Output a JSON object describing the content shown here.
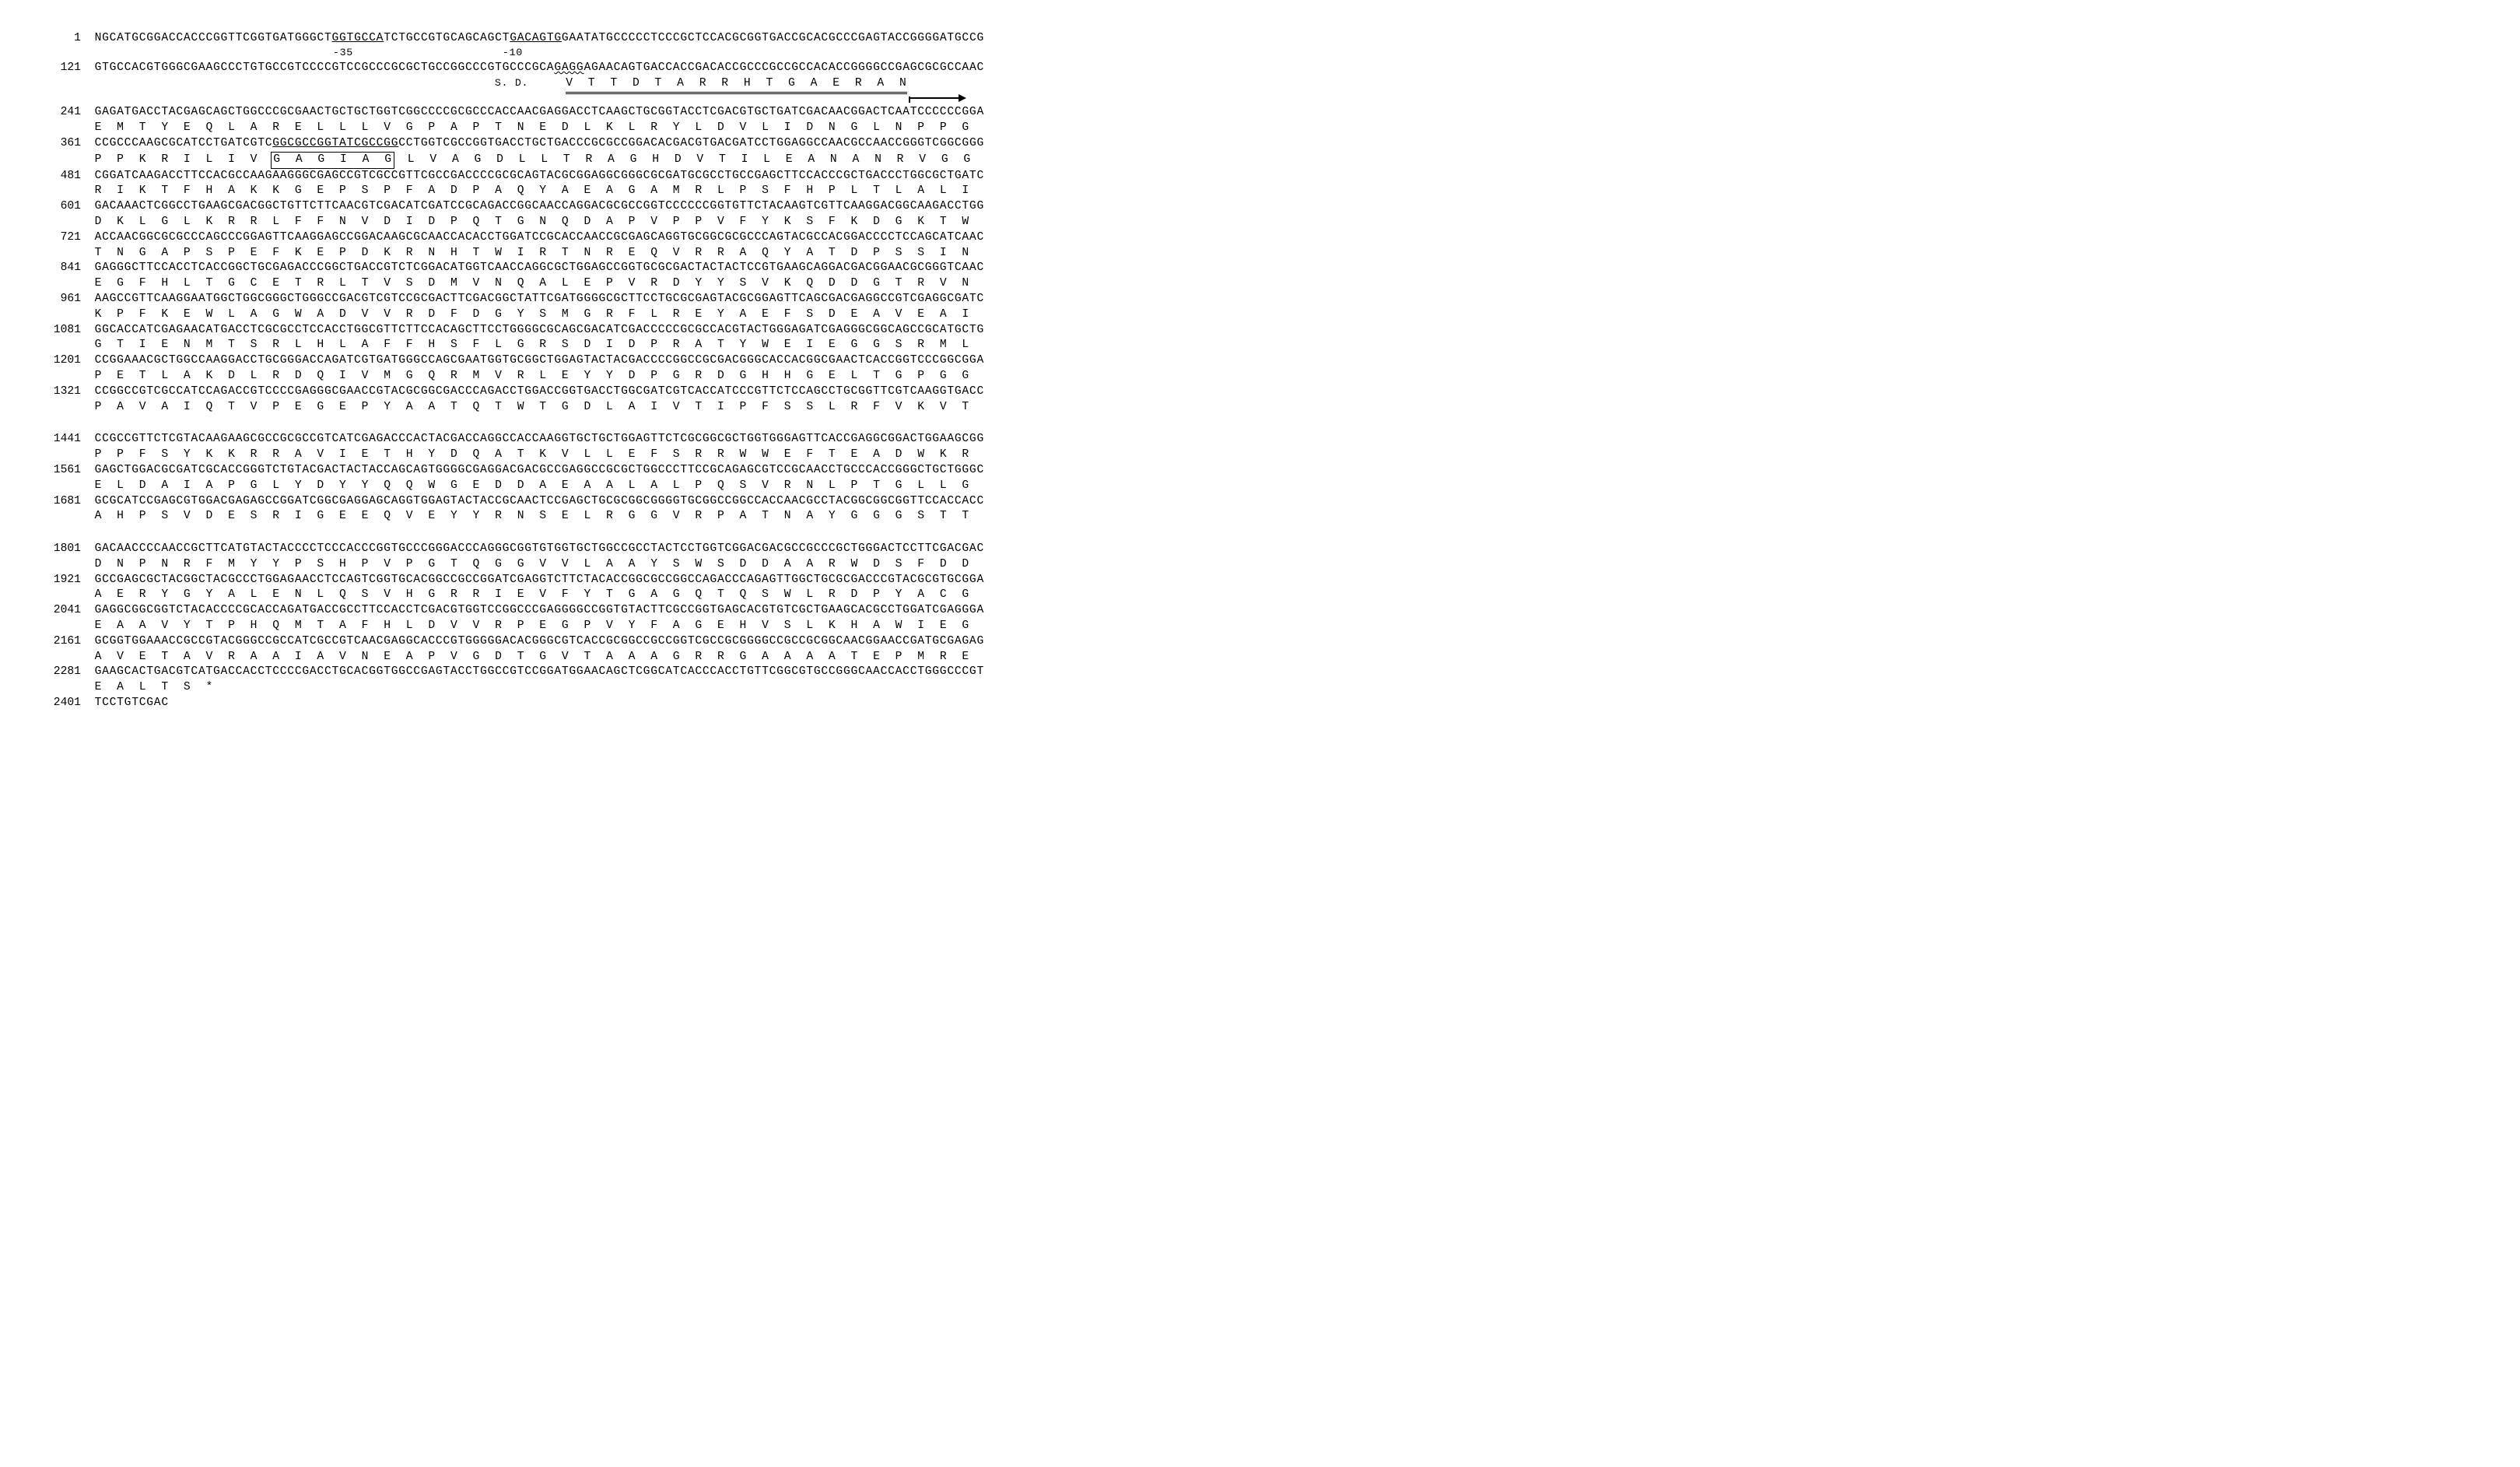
{
  "figure": {
    "type": "sequence-listing",
    "font_family": "Courier New",
    "dna_font_size_pt": 11,
    "aa_font_size_pt": 11,
    "pos_font_size_pt": 11,
    "annot_font_size_pt": 10,
    "text_color": "#000000",
    "background_color": "#ffffff",
    "pos_col_width_ch": 5,
    "gap_after_pos_ch": 2,
    "aa_indent_ch": 7,
    "aa_char_spacing_ch": 3,
    "chars_per_dna_line": 120,
    "annotations": {
      "minus35": {
        "label": "-35",
        "style": "underline",
        "dna_segment": "GGTGCCA"
      },
      "minus10": {
        "label": "-10",
        "style": "underline",
        "dna_segment": "GACAGTG"
      },
      "sd": {
        "label": "S. D.",
        "style": "wavy",
        "dna_segment": "GAGG"
      },
      "orf_start_underline": {
        "style": "double-underline",
        "aa_segment": "V  T  T  D  T  A  R  R  H  T  G  A  E  R  A  N"
      },
      "arrow_label": "ORF start arrow",
      "box_motif": {
        "style": "box",
        "aa_segment": "G  A  G  I  A  G"
      },
      "adp_underline": {
        "style": "underline",
        "dna_segment": "GGCGCCGGTATCGCCGG"
      }
    },
    "lines": [
      {
        "pos": 1,
        "dna_pre": "NGCATGCGGACCACCCGGTTCGGTGATGGGCT",
        "u1": "GGTGCCA",
        "dna_mid": "TCTGCCGTGCAGCAGCT",
        "u2": "GACAGTG",
        "dna_post": "GAATATGCCCCCTCCCGCTCCACGCGGTGACCGCACGCCCGAGTACCGGGGATGCCG"
      },
      {
        "annot_row": true,
        "m35_offset_ch": 46,
        "m10_offset_ch": 73,
        "m35": "-35",
        "m10": "-10"
      },
      {
        "pos": 121,
        "dna_pre": "GTGCCACGTGGGCGAAGCCCTGTGCCGTCCCCGTCCGCCCGCGCTGCCGGCCCGTGCCCGCA",
        "wavy": "GAGG",
        "dna_mid2": "AGAACAGTGACCACCGACACCGCCCGCCGCCACACCGGGGCCGAGCGCGCCAAC"
      },
      {
        "annot_row2": true,
        "sd_offset_ch": 72,
        "sd": "S. D.",
        "aa_dbl_offset_ch": 83,
        "aa_dbl": "V  T  T  D  T  A  R  R  H  T  G  A  E  R  A  N"
      },
      {
        "arrow_row": true,
        "arrow_left_ch": 126,
        "arrow_width_ch": 7
      },
      {
        "pos": 241,
        "dna": "GAGATGACCTACGAGCAGCTGGCCCGCGAACTGCTGCTGGTCGGCCCCGCGCCCACCAACGAGGACCTCAAGCTGCGGTACCTCGACGTGCTGATCGACAACGGACTCAATCCCCCCGGA"
      },
      {
        "aa": "E  M  T  Y  E  Q  L  A  R  E  L  L  L  V  G  P  A  P  T  N  E  D  L  K  L  R  Y  L  D  V  L  I  D  N  G  L  N  P  P  G"
      },
      {
        "pos": 361,
        "dna_pre": "CCGCCCAAGCGCATCCTGATCGTC",
        "u1": "GGCGCCGGTATCGCCGG",
        "dna_post": "CCTGGTCGCCGGTGACCTGCTGACCCGCGCCGGACACGACGTGACGATCCTGGAGGCCAACGCCAACCGGGTCGGCGGG"
      },
      {
        "aa_pre": "P  P  K  R  I  L  I  V  ",
        "aa_box": "G  A  G  I  A  G",
        "aa_post": "  L  V  A  G  D  L  L  T  R  A  G  H  D  V  T  I  L  E  A  N  A  N  R  V  G  G"
      },
      {
        "pos": 481,
        "dna": "CGGATCAAGACCTTCCACGCCAAGAAGGGCGAGCCGTCGCCGTTCGCCGACCCCGCGCAGTACGCGGAGGCGGGCGCGATGCGCCTGCCGAGCTTCCACCCGCTGACCCTGGCGCTGATC"
      },
      {
        "aa": "R  I  K  T  F  H  A  K  K  G  E  P  S  P  F  A  D  P  A  Q  Y  A  E  A  G  A  M  R  L  P  S  F  H  P  L  T  L  A  L  I"
      },
      {
        "pos": 601,
        "dna": "GACAAACTCGGCCTGAAGCGACGGCTGTTCTTCAACGTCGACATCGATCCGCAGACCGGCAACCAGGACGCGCCGGTCCCCCCGGTGTTCTACAAGTCGTTCAAGGACGGCAAGACCTGG"
      },
      {
        "aa": "D  K  L  G  L  K  R  R  L  F  F  N  V  D  I  D  P  Q  T  G  N  Q  D  A  P  V  P  P  V  F  Y  K  S  F  K  D  G  K  T  W"
      },
      {
        "pos": 721,
        "dna": "ACCAACGGCGCGCCCAGCCCGGAGTTCAAGGAGCCGGACAAGCGCAACCACACCTGGATCCGCACCAACCGCGAGCAGGTGCGGCGCGCCCAGTACGCCACGGACCCCTCCAGCATCAAC"
      },
      {
        "aa": "T  N  G  A  P  S  P  E  F  K  E  P  D  K  R  N  H  T  W  I  R  T  N  R  E  Q  V  R  R  A  Q  Y  A  T  D  P  S  S  I  N"
      },
      {
        "pos": 841,
        "dna": "GAGGGCTTCCACCTCACCGGCTGCGAGACCCGGCTGACCGTCTCGGACATGGTCAACCAGGCGCTGGAGCCGGTGCGCGACTACTACTCCGTGAAGCAGGACGACGGAACGCGGGTCAAC"
      },
      {
        "aa": "E  G  F  H  L  T  G  C  E  T  R  L  T  V  S  D  M  V  N  Q  A  L  E  P  V  R  D  Y  Y  S  V  K  Q  D  D  G  T  R  V  N"
      },
      {
        "pos": 961,
        "dna": "AAGCCGTTCAAGGAATGGCTGGCGGGCTGGGCCGACGTCGTCCGCGACTTCGACGGCTATTCGATGGGGCGCTTCCTGCGCGAGTACGCGGAGTTCAGCGACGAGGCCGTCGAGGCGATC"
      },
      {
        "aa": "K  P  F  K  E  W  L  A  G  W  A  D  V  V  R  D  F  D  G  Y  S  M  G  R  F  L  R  E  Y  A  E  F  S  D  E  A  V  E  A  I"
      },
      {
        "pos": 1081,
        "dna": "GGCACCATCGAGAACATGACCTCGCGCCTCCACCTGGCGTTCTTCCACAGCTTCCTGGGGCGCAGCGACATCGACCCCCGCGCCACGTACTGGGAGATCGAGGGCGGCAGCCGCATGCTG"
      },
      {
        "aa": "G  T  I  E  N  M  T  S  R  L  H  L  A  F  F  H  S  F  L  G  R  S  D  I  D  P  R  A  T  Y  W  E  I  E  G  G  S  R  M  L"
      },
      {
        "pos": 1201,
        "dna": "CCGGAAACGCTGGCCAAGGACCTGCGGGACCAGATCGTGATGGGCCAGCGAATGGTGCGGCTGGAGTACTACGACCCCGGCCGCGACGGGCACCACGGCGAACTCACCGGTCCCGGCGGA"
      },
      {
        "aa": "P  E  T  L  A  K  D  L  R  D  Q  I  V  M  G  Q  R  M  V  R  L  E  Y  Y  D  P  G  R  D  G  H  H  G  E  L  T  G  P  G  G"
      },
      {
        "pos": 1321,
        "dna": "CCGGCCGTCGCCATCCAGACCGTCCCCGAGGGCGAACCGTACGCGGCGACCCAGACCTGGACCGGTGACCTGGCGATCGTCACCATCCCGTTCTCCAGCCTGCGGTTCGTCAAGGTGACC"
      },
      {
        "aa": "P  A  V  A  I  Q  T  V  P  E  G  E  P  Y  A  A  T  Q  T  W  T  G  D  L  A  I  V  T  I  P  F  S  S  L  R  F  V  K  V  T"
      },
      {
        "gap": true
      },
      {
        "pos": 1441,
        "dna": "CCGCCGTTCTCGTACAAGAAGCGCCGCGCCGTCATCGAGACCCACTACGACCAGGCCACCAAGGTGCTGCTGGAGTTCTCGCGGCGCTGGTGGGAGTTCACCGAGGCGGACTGGAAGCGG"
      },
      {
        "aa": "P  P  F  S  Y  K  K  R  R  A  V  I  E  T  H  Y  D  Q  A  T  K  V  L  L  E  F  S  R  R  W  W  E  F  T  E  A  D  W  K  R"
      },
      {
        "pos": 1561,
        "dna": "GAGCTGGACGCGATCGCACCGGGTCTGTACGACTACTACCAGCAGTGGGGCGAGGACGACGCCGAGGCCGCGCTGGCCCTTCCGCAGAGCGTCCGCAACCTGCCCACCGGGCTGCTGGGC"
      },
      {
        "aa": "E  L  D  A  I  A  P  G  L  Y  D  Y  Y  Q  Q  W  G  E  D  D  A  E  A  A  L  A  L  P  Q  S  V  R  N  L  P  T  G  L  L  G"
      },
      {
        "pos": 1681,
        "dna": "GCGCATCCGAGCGTGGACGAGAGCCGGATCGGCGAGGAGCAGGTGGAGTACTACCGCAACTCCGAGCTGCGCGGCGGGGTGCGGCCGGCCACCAACGCCTACGGCGGCGGTTCCACCACC"
      },
      {
        "aa": "A  H  P  S  V  D  E  S  R  I  G  E  E  Q  V  E  Y  Y  R  N  S  E  L  R  G  G  V  R  P  A  T  N  A  Y  G  G  G  S  T  T"
      },
      {
        "gap": true
      },
      {
        "pos": 1801,
        "dna": "GACAACCCCAACCGCTTCATGTACTACCCCTCCCACCCGGTGCCCGGGACCCAGGGCGGTGTGGTGCTGGCCGCCTACTCCTGGTCGGACGACGCCGCCCGCTGGGACTCCTTCGACGAC"
      },
      {
        "aa": "D  N  P  N  R  F  M  Y  Y  P  S  H  P  V  P  G  T  Q  G  G  V  V  L  A  A  Y  S  W  S  D  D  A  A  R  W  D  S  F  D  D"
      },
      {
        "pos": 1921,
        "dna": "GCCGAGCGCTACGGCTACGCCCTGGAGAACCTCCAGTCGGTGCACGGCCGCCGGATCGAGGTCTTCTACACCGGCGCCGGCCAGACCCAGAGTTGGCTGCGCGACCCGTACGCGTGCGGA"
      },
      {
        "aa": "A  E  R  Y  G  Y  A  L  E  N  L  Q  S  V  H  G  R  R  I  E  V  F  Y  T  G  A  G  Q  T  Q  S  W  L  R  D  P  Y  A  C  G"
      },
      {
        "pos": 2041,
        "dna": "GAGGCGGCGGTCTACACCCCGCACCAGATGACCGCCTTCCACCTCGACGTGGTCCGGCCCGAGGGGCCGGTGTACTTCGCCGGTGAGCACGTGTCGCTGAAGCACGCCTGGATCGAGGGA"
      },
      {
        "aa": "E  A  A  V  Y  T  P  H  Q  M  T  A  F  H  L  D  V  V  R  P  E  G  P  V  Y  F  A  G  E  H  V  S  L  K  H  A  W  I  E  G"
      },
      {
        "pos": 2161,
        "dna": "GCGGTGGAAACCGCCGTACGGGCCGCCATCGCCGTCAACGAGGCACCCGTGGGGGACACGGGCGTCACCGCGGCCGCCGGTCGCCGCGGGGCCGCCGCGGCAACGGAACCGATGCGAGAG"
      },
      {
        "aa": "A  V  E  T  A  V  R  A  A  I  A  V  N  E  A  P  V  G  D  T  G  V  T  A  A  A  G  R  R  G  A  A  A  A  T  E  P  M  R  E"
      },
      {
        "pos": 2281,
        "dna": "GAAGCACTGACGTCATGACCACCTCCCCGACCTGCACGGTGGCCGAGTACCTGGCCGTCCGGATGGAACAGCTCGGCATCACCCACCTGTTCGGCGTGCCGGGCAACCACCTGGGCCCGT"
      },
      {
        "aa": "E  A  L  T  S  *"
      },
      {
        "pos": 2401,
        "dna": "TCCTGTCGAC"
      }
    ]
  }
}
